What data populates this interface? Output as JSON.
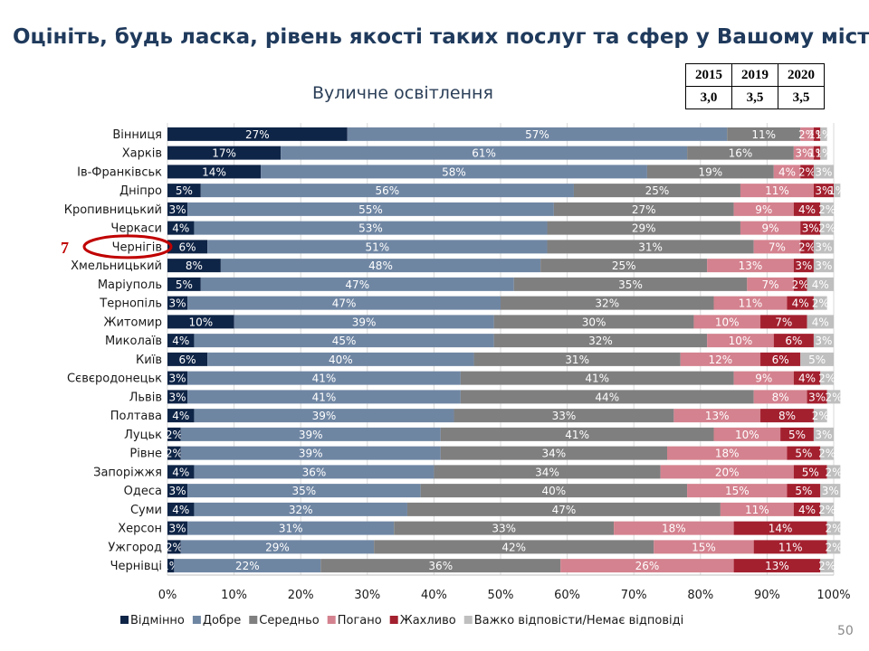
{
  "page": {
    "title": "Оцініть, будь ласка, рівень якості таких послуг та сфер у Вашому місті",
    "page_number": "50",
    "rank_marker": "7",
    "highlighted_city": "Чернігів"
  },
  "ratings_table": {
    "years": [
      "2015",
      "2019",
      "2020"
    ],
    "values": [
      "3,0",
      "3,5",
      "3,5"
    ]
  },
  "chart_data": {
    "type": "bar",
    "orientation": "horizontal",
    "stacked": "percent",
    "title": "Вуличне освітлення",
    "xlim": [
      0,
      100
    ],
    "x_ticks": [
      "0%",
      "10%",
      "20%",
      "30%",
      "40%",
      "50%",
      "60%",
      "70%",
      "80%",
      "90%",
      "100%"
    ],
    "legend_position": "bottom",
    "categories": [
      "Вінниця",
      "Харків",
      "Ів-Франківськ",
      "Дніпро",
      "Кропивницький",
      "Черкаси",
      "Чернігів",
      "Хмельницький",
      "Маріуполь",
      "Тернопіль",
      "Житомир",
      "Миколаїв",
      "Київ",
      "Сєвєродонецьк",
      "Львів",
      "Полтава",
      "Луцьк",
      "Рівне",
      "Запоріжжя",
      "Одеса",
      "Суми",
      "Херсон",
      "Ужгород",
      "Чернівці"
    ],
    "series": [
      {
        "name": "Відмінно",
        "color": "#0f2547",
        "label_color": "#ffffff",
        "values": [
          27,
          17,
          14,
          5,
          3,
          4,
          6,
          8,
          5,
          3,
          10,
          4,
          6,
          3,
          3,
          4,
          2,
          2,
          4,
          3,
          4,
          3,
          2,
          1
        ]
      },
      {
        "name": "Добре",
        "color": "#6f86a3",
        "label_color": "#ffffff",
        "values": [
          57,
          61,
          58,
          56,
          55,
          53,
          51,
          48,
          47,
          47,
          39,
          45,
          40,
          41,
          41,
          39,
          39,
          39,
          36,
          35,
          32,
          31,
          29,
          22
        ]
      },
      {
        "name": "Середньо",
        "color": "#7f7f7f",
        "label_color": "#ffffff",
        "values": [
          11,
          16,
          19,
          25,
          27,
          29,
          31,
          25,
          35,
          32,
          30,
          32,
          31,
          41,
          44,
          33,
          41,
          34,
          34,
          40,
          47,
          33,
          42,
          36
        ]
      },
      {
        "name": "Погано",
        "color": "#d4828f",
        "label_color": "#ffffff",
        "values": [
          2,
          3,
          4,
          11,
          9,
          9,
          7,
          13,
          7,
          11,
          10,
          10,
          12,
          9,
          8,
          13,
          10,
          18,
          20,
          15,
          11,
          18,
          15,
          26
        ]
      },
      {
        "name": "Жахливо",
        "color": "#a3202f",
        "label_color": "#ffffff",
        "values": [
          1,
          1,
          2,
          3,
          4,
          3,
          2,
          3,
          2,
          4,
          7,
          6,
          6,
          4,
          3,
          8,
          5,
          5,
          5,
          5,
          4,
          14,
          11,
          13
        ]
      },
      {
        "name": "Важко відповісти/Немає відповіді",
        "color": "#bfbfbf",
        "label_color": "#ffffff",
        "values": [
          1,
          1,
          3,
          1,
          2,
          2,
          3,
          3,
          4,
          2,
          4,
          3,
          5,
          2,
          2,
          2,
          3,
          2,
          2,
          3,
          2,
          2,
          2,
          2
        ]
      }
    ]
  }
}
